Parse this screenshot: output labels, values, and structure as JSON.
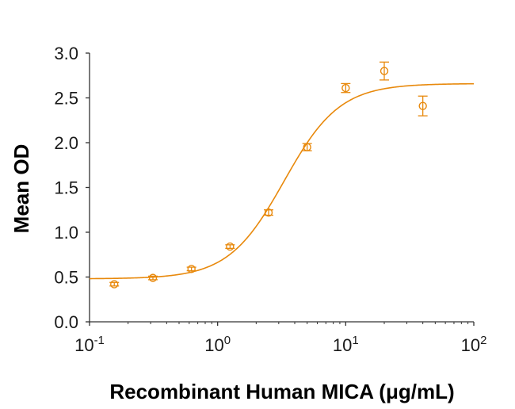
{
  "chart_data": {
    "type": "scatter",
    "title": "",
    "xlabel": "Recombinant Human MICA (μg/mL)",
    "ylabel": "Mean OD",
    "xscale": "log",
    "xlim": [
      0.1,
      100
    ],
    "ylim": [
      0.0,
      3.0
    ],
    "grid": false,
    "legend": "none",
    "color": "#E8890C",
    "x_ticks": [
      {
        "value": 0.1,
        "base": "10",
        "exp": "-1"
      },
      {
        "value": 1,
        "base": "10",
        "exp": "0"
      },
      {
        "value": 10,
        "base": "10",
        "exp": "1"
      },
      {
        "value": 100,
        "base": "10",
        "exp": "2"
      }
    ],
    "y_ticks": [
      {
        "value": 0.0,
        "label": "0.0"
      },
      {
        "value": 0.5,
        "label": "0.5"
      },
      {
        "value": 1.0,
        "label": "1.0"
      },
      {
        "value": 1.5,
        "label": "1.5"
      },
      {
        "value": 2.0,
        "label": "2.0"
      },
      {
        "value": 2.5,
        "label": "2.5"
      },
      {
        "value": 3.0,
        "label": "3.0"
      }
    ],
    "series": [
      {
        "name": "Mean OD",
        "marker": "open-circle",
        "points": [
          {
            "x": 0.156,
            "y": 0.42,
            "err": 0.02
          },
          {
            "x": 0.3125,
            "y": 0.49,
            "err": 0.02
          },
          {
            "x": 0.625,
            "y": 0.59,
            "err": 0.02
          },
          {
            "x": 1.25,
            "y": 0.84,
            "err": 0.02
          },
          {
            "x": 2.5,
            "y": 1.22,
            "err": 0.03
          },
          {
            "x": 5,
            "y": 1.95,
            "err": 0.04
          },
          {
            "x": 10,
            "y": 2.61,
            "err": 0.05
          },
          {
            "x": 20,
            "y": 2.8,
            "err": 0.1
          },
          {
            "x": 40,
            "y": 2.41,
            "err": 0.11
          }
        ]
      }
    ],
    "fit": {
      "type": "4PL",
      "bottom": 0.48,
      "top": 2.66,
      "ec50": 3.3,
      "hill": 2.0
    }
  }
}
